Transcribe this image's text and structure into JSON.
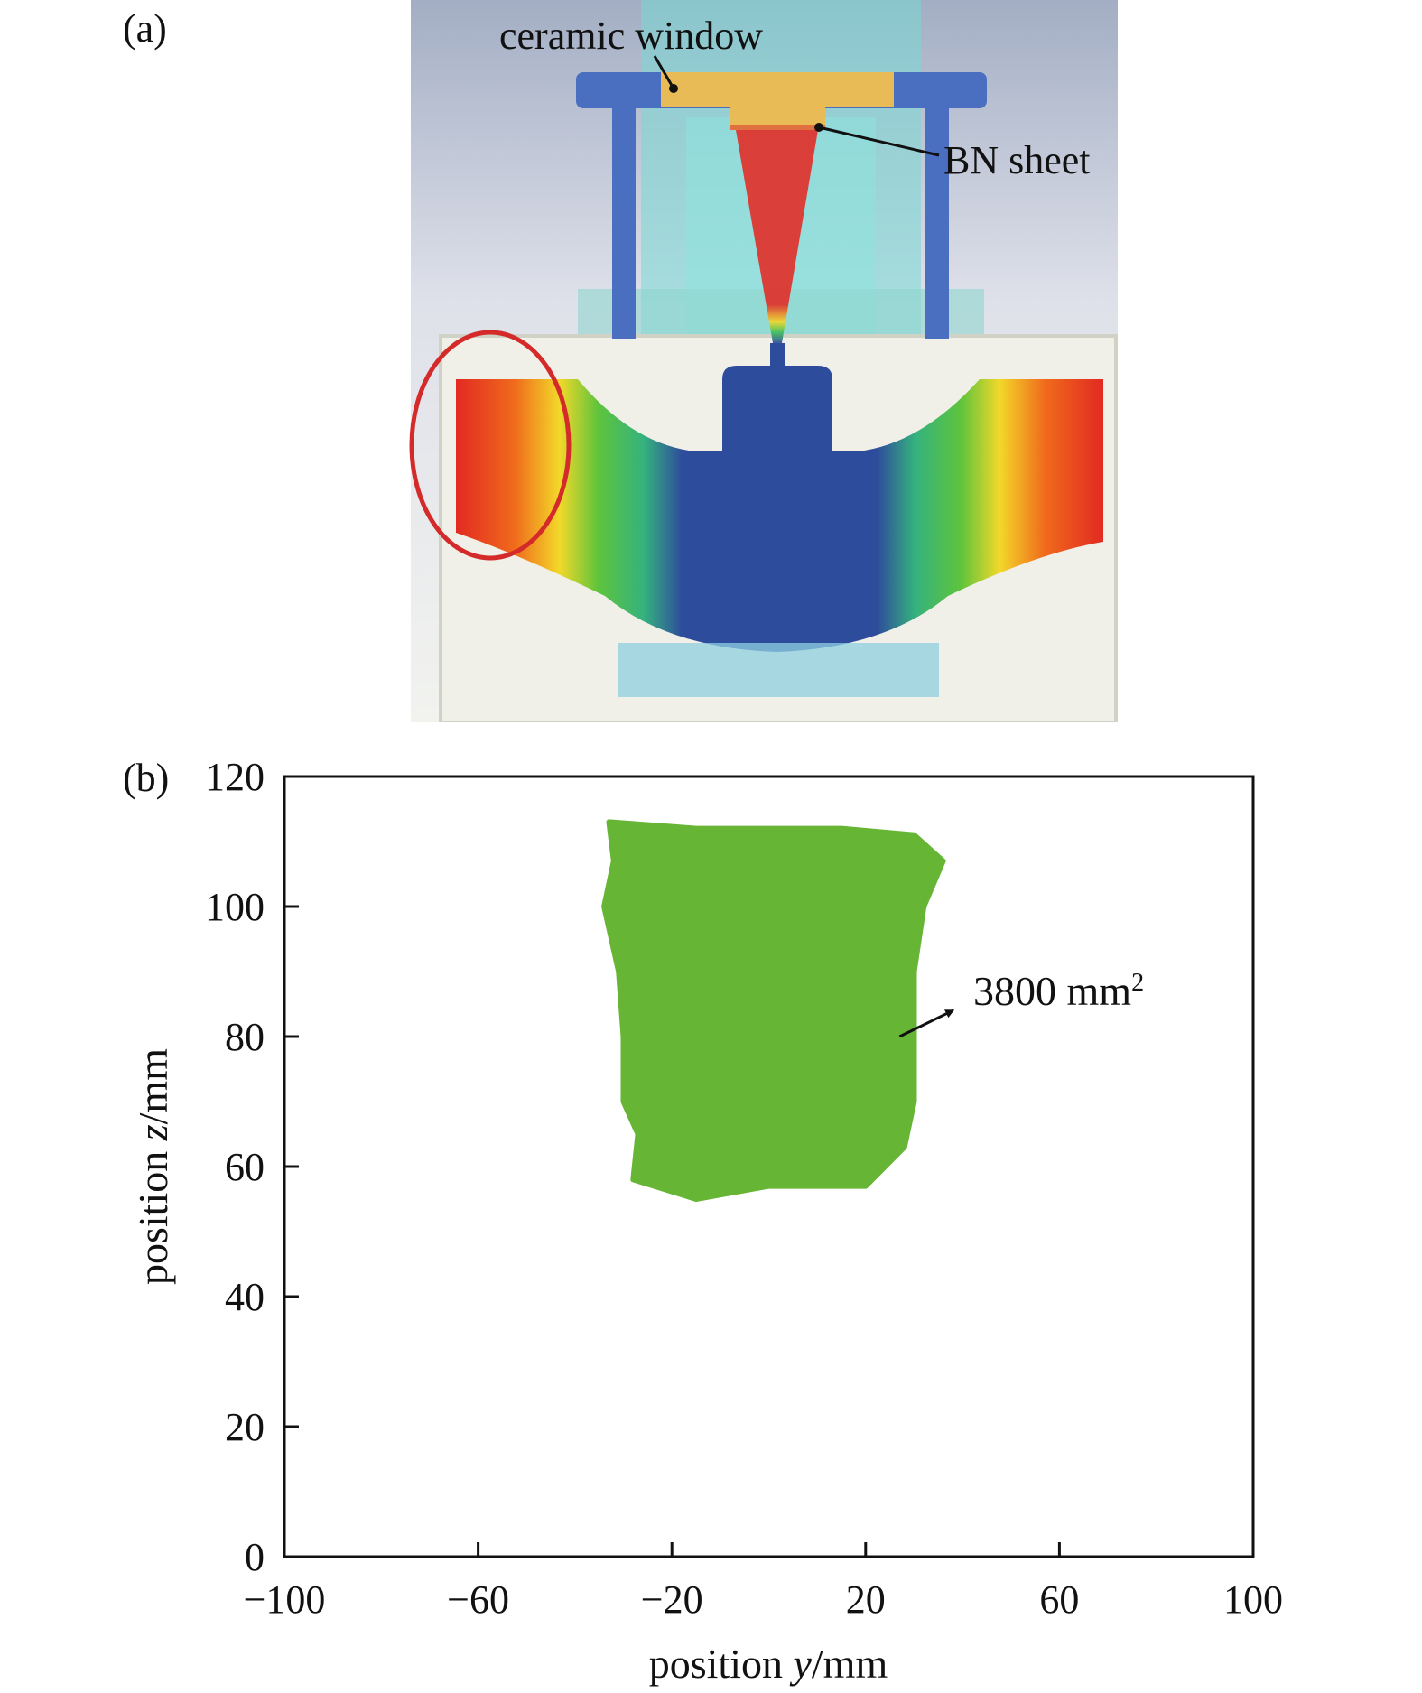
{
  "figure": {
    "panel_a_label": "(a)",
    "panel_b_label": "(b)",
    "callouts": {
      "ceramic_window": "ceramic window",
      "bn_sheet": "BN sheet"
    }
  },
  "colors": {
    "housing_blue": "#4a6ec0",
    "ceramic_window": "#e8bb57",
    "bn_sheet": "#e07040",
    "beam_red": "#e0312b",
    "beam_blue": "#2e4c9c",
    "highlight_circle": "#d42a2a",
    "spot_green": "#66b535"
  },
  "chart_data": {
    "type": "scatter",
    "xlabel_prefix": "position ",
    "xlabel_var": "y",
    "xlabel_unit": "/mm",
    "ylabel_prefix": "position ",
    "ylabel_var": "z",
    "ylabel_unit": "/mm",
    "xlim": [
      -100,
      100
    ],
    "ylim": [
      0,
      120
    ],
    "x_ticks": [
      -100,
      -60,
      -20,
      20,
      60,
      100
    ],
    "x_tick_labels": [
      "−100",
      "−60",
      "−20",
      "20",
      "60",
      "100"
    ],
    "y_ticks": [
      0,
      20,
      40,
      60,
      80,
      100,
      120
    ],
    "y_tick_labels": [
      "0",
      "20",
      "40",
      "60",
      "80",
      "100",
      "120"
    ],
    "footprint_outline": [
      [
        -33,
        113
      ],
      [
        -15,
        112
      ],
      [
        0,
        112
      ],
      [
        15,
        112
      ],
      [
        30,
        111
      ],
      [
        36,
        107
      ],
      [
        32,
        100
      ],
      [
        30,
        90
      ],
      [
        30,
        80
      ],
      [
        30,
        70
      ],
      [
        28,
        63
      ],
      [
        20,
        57
      ],
      [
        0,
        57
      ],
      [
        -15,
        55
      ],
      [
        -28,
        58
      ],
      [
        -27,
        65
      ],
      [
        -30,
        70
      ],
      [
        -30,
        80
      ],
      [
        -31,
        90
      ],
      [
        -34,
        100
      ],
      [
        -32,
        107
      ]
    ],
    "annotation_value": "3800 mm",
    "annotation_sup": "2",
    "annotation_arrow_from": [
      27,
      80
    ],
    "annotation_arrow_to": [
      38,
      84
    ]
  }
}
